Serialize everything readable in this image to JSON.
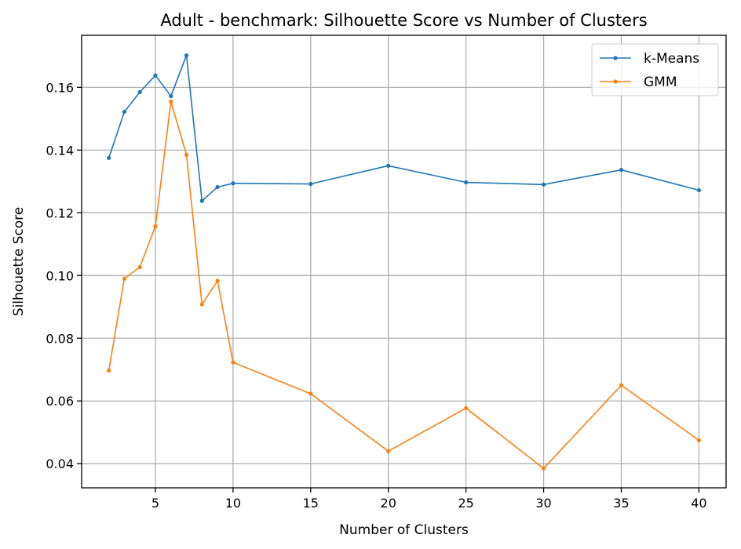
{
  "chart_data": {
    "type": "line",
    "title": "Adult - benchmark: Silhouette Score vs Number of Clusters",
    "xlabel": "Number of Clusters",
    "ylabel": "Silhouette Score",
    "x": [
      2,
      3,
      4,
      5,
      6,
      7,
      8,
      9,
      10,
      15,
      20,
      25,
      30,
      35,
      40
    ],
    "xlim": [
      0.25,
      41.75
    ],
    "ylim": [
      0.0323,
      0.1766
    ],
    "xticks": [
      5,
      10,
      15,
      20,
      25,
      30,
      35,
      40
    ],
    "yticks": [
      0.04,
      0.06,
      0.08,
      0.1,
      0.12,
      0.14,
      0.16
    ],
    "ytick_labels": [
      "0.04",
      "0.06",
      "0.08",
      "0.10",
      "0.12",
      "0.14",
      "0.16"
    ],
    "grid": true,
    "legend_position": "top-right",
    "series": [
      {
        "name": "k-Means",
        "color": "#1f77b4",
        "values": [
          0.1375,
          0.1522,
          0.1585,
          0.1638,
          0.1572,
          0.1702,
          0.1238,
          0.1282,
          0.1294,
          0.1292,
          0.135,
          0.1297,
          0.129,
          0.1337,
          0.1272
        ]
      },
      {
        "name": "GMM",
        "color": "#ff7f0e",
        "values": [
          0.0697,
          0.099,
          0.1027,
          0.1157,
          0.1555,
          0.1385,
          0.0908,
          0.0983,
          0.0723,
          0.0623,
          0.044,
          0.0577,
          0.0385,
          0.065,
          0.0475
        ]
      }
    ]
  }
}
